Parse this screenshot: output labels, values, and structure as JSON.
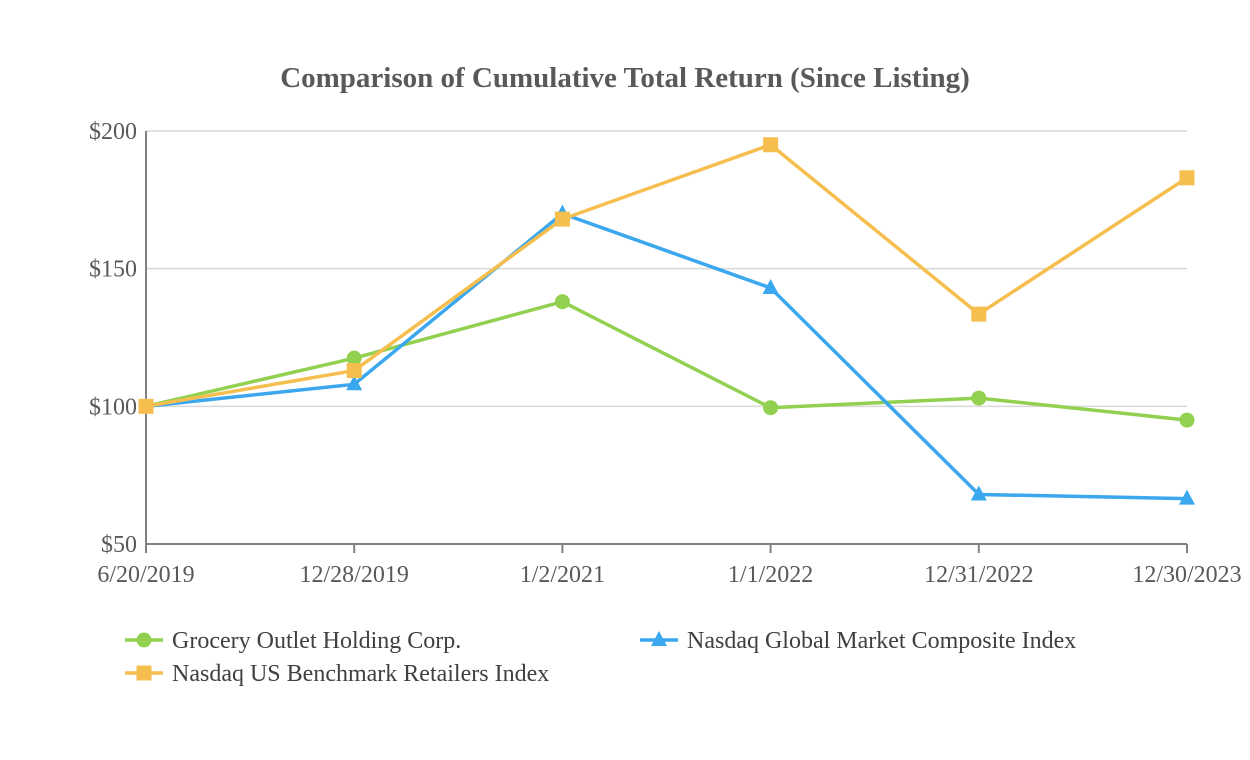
{
  "chart_data": {
    "type": "line",
    "title": "Comparison of Cumulative Total Return (Since Listing)",
    "xlabel": "",
    "ylabel": "",
    "categories": [
      "6/20/2019",
      "12/28/2019",
      "1/2/2021",
      "1/1/2022",
      "12/31/2022",
      "12/30/2023"
    ],
    "ylim": [
      50,
      200
    ],
    "yticks": [
      50,
      100,
      150,
      200
    ],
    "ytick_labels": [
      "$50",
      "$100",
      "$150",
      "$200"
    ],
    "grid": "horizontal",
    "legend_position": "bottom",
    "series": [
      {
        "name": "Grocery Outlet Holding Corp.",
        "values": [
          100,
          117.5,
          138,
          99.5,
          103,
          95
        ],
        "color": "#92d050",
        "marker": "circle"
      },
      {
        "name": "Nasdaq Global Market Composite Index",
        "values": [
          100,
          108,
          170,
          143,
          68,
          66.5
        ],
        "color": "#3aa7ee",
        "marker": "triangle"
      },
      {
        "name": "Nasdaq US Benchmark Retailers Index",
        "values": [
          100,
          113,
          168,
          195,
          133.5,
          183
        ],
        "color": "#f5be4e",
        "marker": "square"
      }
    ]
  }
}
